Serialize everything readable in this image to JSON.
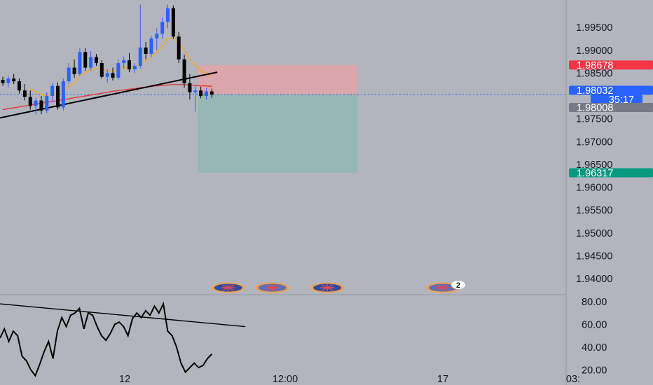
{
  "colors": {
    "background": "#b2b5be",
    "axis_text": "#131722",
    "candle_up": "#2962ff",
    "candle_down": "#000000",
    "ema_fast": "#f5a623",
    "ema_slow": "#e53935",
    "stop_zone": "#e8a3a6",
    "target_zone": "#8fb7b5",
    "stop_label": "#f23645",
    "price_label": "#2962ff",
    "target_label": "#089981",
    "bid_label": "#787b86",
    "trendline": "#000000",
    "oscillator": "#000000"
  },
  "chart_data": [
    {
      "type": "candlestick",
      "panel": "price",
      "ylim": [
        1.9365,
        2.001
      ],
      "grid": false,
      "y_ticks": [
        "1.99500",
        "1.99000",
        "1.98500",
        "1.97500",
        "1.97000",
        "1.96500",
        "1.96000",
        "1.95500",
        "1.95000",
        "1.94500",
        "1.94000"
      ],
      "x_ticks": [
        "12",
        "12:00",
        "17",
        "03:"
      ],
      "candles": [
        {
          "o": 1.9835,
          "h": 1.9842,
          "l": 1.9822,
          "c": 1.9828
        },
        {
          "o": 1.9828,
          "h": 1.9844,
          "l": 1.9818,
          "c": 1.9838
        },
        {
          "o": 1.9838,
          "h": 1.9848,
          "l": 1.9826,
          "c": 1.9832
        },
        {
          "o": 1.9832,
          "h": 1.9838,
          "l": 1.9805,
          "c": 1.9812
        },
        {
          "o": 1.9812,
          "h": 1.9826,
          "l": 1.979,
          "c": 1.9798
        },
        {
          "o": 1.9798,
          "h": 1.9812,
          "l": 1.977,
          "c": 1.9778
        },
        {
          "o": 1.9778,
          "h": 1.9796,
          "l": 1.976,
          "c": 1.979
        },
        {
          "o": 1.979,
          "h": 1.98,
          "l": 1.976,
          "c": 1.9768
        },
        {
          "o": 1.9768,
          "h": 1.9808,
          "l": 1.9762,
          "c": 1.98
        },
        {
          "o": 1.98,
          "h": 1.9828,
          "l": 1.9788,
          "c": 1.9822
        },
        {
          "o": 1.9822,
          "h": 1.983,
          "l": 1.977,
          "c": 1.9775
        },
        {
          "o": 1.9775,
          "h": 1.9838,
          "l": 1.9768,
          "c": 1.9832
        },
        {
          "o": 1.9832,
          "h": 1.9872,
          "l": 1.9826,
          "c": 1.9862
        },
        {
          "o": 1.9862,
          "h": 1.988,
          "l": 1.984,
          "c": 1.9848
        },
        {
          "o": 1.9848,
          "h": 1.9905,
          "l": 1.9844,
          "c": 1.9896
        },
        {
          "o": 1.9896,
          "h": 1.9904,
          "l": 1.9855,
          "c": 1.9862
        },
        {
          "o": 1.9862,
          "h": 1.9898,
          "l": 1.9856,
          "c": 1.9885
        },
        {
          "o": 1.9885,
          "h": 1.9892,
          "l": 1.9866,
          "c": 1.9872
        },
        {
          "o": 1.9872,
          "h": 1.9878,
          "l": 1.9838,
          "c": 1.9842
        },
        {
          "o": 1.9842,
          "h": 1.9858,
          "l": 1.983,
          "c": 1.985
        },
        {
          "o": 1.985,
          "h": 1.9862,
          "l": 1.9834,
          "c": 1.984
        },
        {
          "o": 1.984,
          "h": 1.988,
          "l": 1.9836,
          "c": 1.9872
        },
        {
          "o": 1.9872,
          "h": 1.9886,
          "l": 1.986,
          "c": 1.9878
        },
        {
          "o": 1.9878,
          "h": 1.9894,
          "l": 1.9852,
          "c": 1.9858
        },
        {
          "o": 1.9858,
          "h": 1.9872,
          "l": 1.985,
          "c": 1.9866
        },
        {
          "o": 1.9866,
          "h": 2.0,
          "l": 1.986,
          "c": 1.9906
        },
        {
          "o": 1.9906,
          "h": 1.9918,
          "l": 1.988,
          "c": 1.9892
        },
        {
          "o": 1.9892,
          "h": 1.9932,
          "l": 1.9885,
          "c": 1.9926
        },
        {
          "o": 1.9926,
          "h": 1.9948,
          "l": 1.99,
          "c": 1.9936
        },
        {
          "o": 1.9936,
          "h": 1.9972,
          "l": 1.9925,
          "c": 1.9962
        },
        {
          "o": 1.9962,
          "h": 2.0,
          "l": 1.9948,
          "c": 1.9992
        },
        {
          "o": 1.9992,
          "h": 1.9998,
          "l": 1.9925,
          "c": 1.993
        },
        {
          "o": 1.993,
          "h": 1.994,
          "l": 1.9872,
          "c": 1.988
        },
        {
          "o": 1.988,
          "h": 1.989,
          "l": 1.9818,
          "c": 1.9828
        },
        {
          "o": 1.9828,
          "h": 1.9848,
          "l": 1.9792,
          "c": 1.9808
        },
        {
          "o": 1.9808,
          "h": 1.9822,
          "l": 1.9766,
          "c": 1.9812
        },
        {
          "o": 1.9812,
          "h": 1.982,
          "l": 1.9795,
          "c": 1.98
        },
        {
          "o": 1.98,
          "h": 1.9818,
          "l": 1.9792,
          "c": 1.981
        },
        {
          "o": 1.981,
          "h": 1.9816,
          "l": 1.9796,
          "c": 1.9803
        }
      ],
      "ema_fast": [
        1.9832,
        1.9833,
        1.9833,
        1.9829,
        1.9824,
        1.9816,
        1.981,
        1.9803,
        1.9801,
        1.9806,
        1.9803,
        1.9809,
        1.9821,
        1.9828,
        1.9844,
        1.9851,
        1.9857,
        1.9861,
        1.9858,
        1.9856,
        1.9853,
        1.9857,
        1.9863,
        1.9862,
        1.9863,
        1.9872,
        1.9876,
        1.9886,
        1.9896,
        1.9909,
        1.9926,
        1.9927,
        1.9917,
        1.9899,
        1.988,
        1.9866,
        1.9856,
        1.9849,
        1.9843
      ],
      "ema_slow": [
        1.977,
        1.9772,
        1.9774,
        1.9776,
        1.9778,
        1.978,
        1.9782,
        1.9784,
        1.9786,
        1.9788,
        1.979,
        1.9792,
        1.9794,
        1.9796,
        1.9798,
        1.98,
        1.9802,
        1.9804,
        1.9806,
        1.9808,
        1.981,
        1.9812,
        1.9813,
        1.9815,
        1.9816,
        1.9818,
        1.9819,
        1.9821,
        1.9822,
        1.9823,
        1.9824,
        1.9825,
        1.9825,
        1.9825,
        1.9824,
        1.9823,
        1.9822,
        1.9822,
        1.9821
      ],
      "trendline": {
        "from": [
          0,
          1.9752
        ],
        "to": [
          39,
          1.9852
        ]
      },
      "position": {
        "start_bar": 35.5,
        "end_bar": 64.5,
        "stop": 1.98678,
        "entry": 1.98032,
        "target": 1.96317
      },
      "price_tags": [
        {
          "label": "1.98678",
          "value": 1.98678,
          "role": "stop"
        },
        {
          "label": "1.98032",
          "value": 1.98032,
          "role": "price"
        },
        {
          "label": "35:17",
          "value": 1.98032,
          "role": "countdown"
        },
        {
          "label": "1.98008",
          "value": 1.98008,
          "role": "bid"
        },
        {
          "label": "1.96317",
          "value": 1.96317,
          "role": "target"
        }
      ]
    },
    {
      "type": "line",
      "panel": "oscillator",
      "ylim": [
        16,
        86
      ],
      "y_ticks": [
        "80.00",
        "60.00",
        "40.00",
        "20.00"
      ],
      "values": [
        48,
        56,
        45,
        54,
        50,
        32,
        28,
        20,
        15,
        25,
        36,
        45,
        30,
        54,
        66,
        58,
        68,
        70,
        74,
        56,
        70,
        68,
        58,
        50,
        46,
        52,
        60,
        62,
        58,
        50,
        65,
        70,
        66,
        72,
        68,
        76,
        70,
        78,
        54,
        50,
        40,
        26,
        18,
        22,
        26,
        22,
        24,
        30,
        34
      ],
      "trendline": {
        "from": [
          0,
          78
        ],
        "to": [
          44,
          58
        ]
      }
    }
  ],
  "events": [
    {
      "icon": "flag-au-icon",
      "bar": 41
    },
    {
      "icon": "flag-gb-icon",
      "bar": 49
    },
    {
      "icon": "flag-au-icon",
      "bar": 59
    },
    {
      "icon": "flag-gb-icon",
      "bar": 80,
      "count": "2"
    }
  ]
}
